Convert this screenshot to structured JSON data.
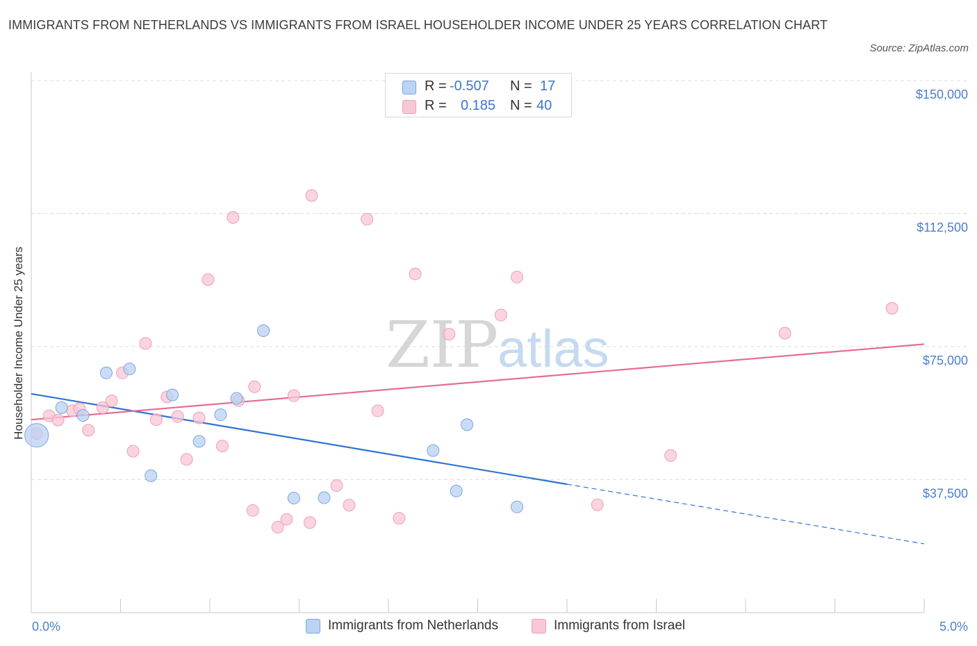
{
  "header": {
    "title": "IMMIGRANTS FROM NETHERLANDS VS IMMIGRANTS FROM ISRAEL HOUSEHOLDER INCOME UNDER 25 YEARS CORRELATION CHART",
    "source": "Source: ZipAtlas.com"
  },
  "watermark": {
    "zip": "ZIP",
    "atlas": "atlas"
  },
  "legend": {
    "rows": [
      {
        "r_label": "R =",
        "r_value": "-0.507",
        "n_label": "N =",
        "n_value": "17",
        "color": "#aac8f0"
      },
      {
        "r_label": "R =",
        "r_value": "0.185",
        "n_label": "N =",
        "n_value": "40",
        "color": "#f5b8c9"
      }
    ]
  },
  "bottom_legend": {
    "netherlands": "Immigrants from Netherlands",
    "israel": "Immigrants from Israel"
  },
  "colors": {
    "netherlands_fill": "#b9d2f3",
    "netherlands_stroke": "#7aa5de",
    "netherlands_line": "#2f72d0",
    "israel_fill": "#f8c6d4",
    "israel_stroke": "#eda0b6",
    "israel_line": "#e46b95",
    "grid": "#dcdcdc",
    "tick_text": "#4a7fd0"
  },
  "chart_data": {
    "type": "scatter",
    "title": "IMMIGRANTS FROM NETHERLANDS VS IMMIGRANTS FROM ISRAEL HOUSEHOLDER INCOME UNDER 25 YEARS CORRELATION CHART",
    "xlabel": "",
    "ylabel": "Householder Income Under 25 years",
    "xlim": [
      0,
      5
    ],
    "ylim": [
      0,
      150000
    ],
    "x_tick_labels": [
      "0.0%",
      "5.0%"
    ],
    "y_ticks": [
      37500,
      75000,
      112500,
      150000
    ],
    "y_tick_labels": [
      "$37,500",
      "$75,000",
      "$112,500",
      "$150,000"
    ],
    "grid": true,
    "legend_position": "top-center",
    "series": [
      {
        "name": "Immigrants from Netherlands",
        "R": -0.507,
        "N": 17,
        "points": [
          {
            "x": 0.03,
            "y": 50000,
            "big": true
          },
          {
            "x": 0.17,
            "y": 57800
          },
          {
            "x": 0.29,
            "y": 55600
          },
          {
            "x": 0.42,
            "y": 67600
          },
          {
            "x": 0.55,
            "y": 68700
          },
          {
            "x": 0.67,
            "y": 38600
          },
          {
            "x": 0.79,
            "y": 61400
          },
          {
            "x": 0.94,
            "y": 48300
          },
          {
            "x": 1.06,
            "y": 55800
          },
          {
            "x": 1.15,
            "y": 60400
          },
          {
            "x": 1.3,
            "y": 79500
          },
          {
            "x": 1.47,
            "y": 32300
          },
          {
            "x": 1.64,
            "y": 32400
          },
          {
            "x": 2.25,
            "y": 45700
          },
          {
            "x": 2.38,
            "y": 34300
          },
          {
            "x": 2.44,
            "y": 53000
          },
          {
            "x": 2.72,
            "y": 29800
          }
        ],
        "trend": {
          "x0": 0,
          "y0": 61700,
          "x1": 3.0,
          "y1": 36200,
          "dashed_to_x": 5.0,
          "dashed_to_y": 19400
        }
      },
      {
        "name": "Immigrants from Israel",
        "R": 0.185,
        "N": 40,
        "points": [
          {
            "x": 0.03,
            "y": 50500
          },
          {
            "x": 0.1,
            "y": 55500
          },
          {
            "x": 0.15,
            "y": 54300
          },
          {
            "x": 0.23,
            "y": 56900
          },
          {
            "x": 0.27,
            "y": 57500
          },
          {
            "x": 0.32,
            "y": 51400
          },
          {
            "x": 0.4,
            "y": 57800
          },
          {
            "x": 0.45,
            "y": 59700
          },
          {
            "x": 0.51,
            "y": 67600
          },
          {
            "x": 0.57,
            "y": 45500
          },
          {
            "x": 0.64,
            "y": 75900
          },
          {
            "x": 0.7,
            "y": 54400
          },
          {
            "x": 0.76,
            "y": 60800
          },
          {
            "x": 0.82,
            "y": 55300
          },
          {
            "x": 0.87,
            "y": 43200
          },
          {
            "x": 0.94,
            "y": 54900
          },
          {
            "x": 0.99,
            "y": 93900
          },
          {
            "x": 1.07,
            "y": 47000
          },
          {
            "x": 1.13,
            "y": 111400
          },
          {
            "x": 1.16,
            "y": 59800
          },
          {
            "x": 1.25,
            "y": 63700
          },
          {
            "x": 1.24,
            "y": 28800
          },
          {
            "x": 1.38,
            "y": 24100
          },
          {
            "x": 1.43,
            "y": 26300
          },
          {
            "x": 1.47,
            "y": 61200
          },
          {
            "x": 1.56,
            "y": 25400
          },
          {
            "x": 1.57,
            "y": 117600
          },
          {
            "x": 1.71,
            "y": 35800
          },
          {
            "x": 1.78,
            "y": 30300
          },
          {
            "x": 1.88,
            "y": 110900
          },
          {
            "x": 1.94,
            "y": 56900
          },
          {
            "x": 2.06,
            "y": 26600
          },
          {
            "x": 2.15,
            "y": 95500
          },
          {
            "x": 2.34,
            "y": 78500
          },
          {
            "x": 2.63,
            "y": 83900
          },
          {
            "x": 2.72,
            "y": 94600
          },
          {
            "x": 3.17,
            "y": 30400
          },
          {
            "x": 3.58,
            "y": 44300
          },
          {
            "x": 4.22,
            "y": 78800
          },
          {
            "x": 4.82,
            "y": 85800
          }
        ],
        "trend": {
          "x0": 0,
          "y0": 54400,
          "x1": 5.0,
          "y1": 75700
        }
      }
    ]
  }
}
